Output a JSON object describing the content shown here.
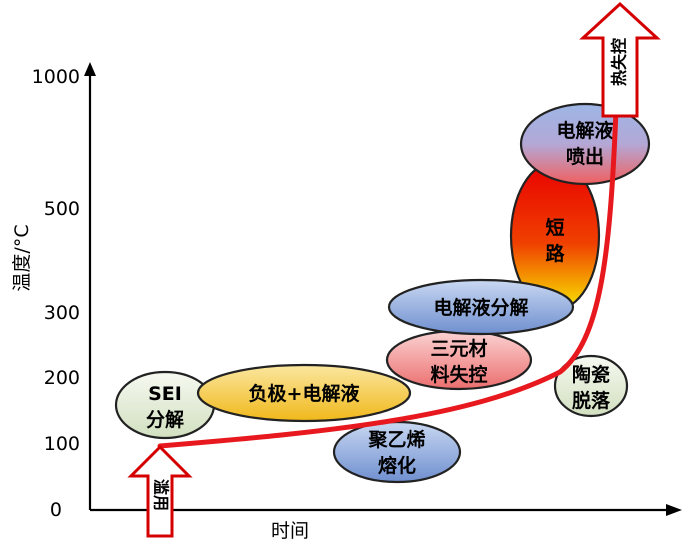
{
  "axes": {
    "y_label": "温度/°C",
    "x_label": "时间",
    "y_ticks": [
      "1000",
      "500",
      "300",
      "200",
      "100",
      "0"
    ]
  },
  "stages": {
    "sei": {
      "line1": "SEI",
      "line2": "分解"
    },
    "anode": {
      "line1": "负极+电解液"
    },
    "pe": {
      "line1": "聚乙烯",
      "line2": "熔化"
    },
    "ternary": {
      "line1": "三元材",
      "line2": "料失控"
    },
    "electrolyte": {
      "line1": "电解液分解"
    },
    "ceramic": {
      "line1": "陶瓷",
      "line2": "脱落"
    },
    "short": {
      "line1": "短",
      "line2": "路"
    },
    "spray": {
      "line1": "电解液",
      "line2": "喷出"
    }
  },
  "arrows": {
    "bottom": "滥用",
    "top": "热失控"
  },
  "colors": {
    "curve": "#e8191e",
    "blue_fill": "#8ea9db",
    "pink_fill": "#f4a6a6",
    "yellow_fill": "#f5c842",
    "green_fill": "#e8f0dd",
    "arrow_outline": "#d40000"
  }
}
